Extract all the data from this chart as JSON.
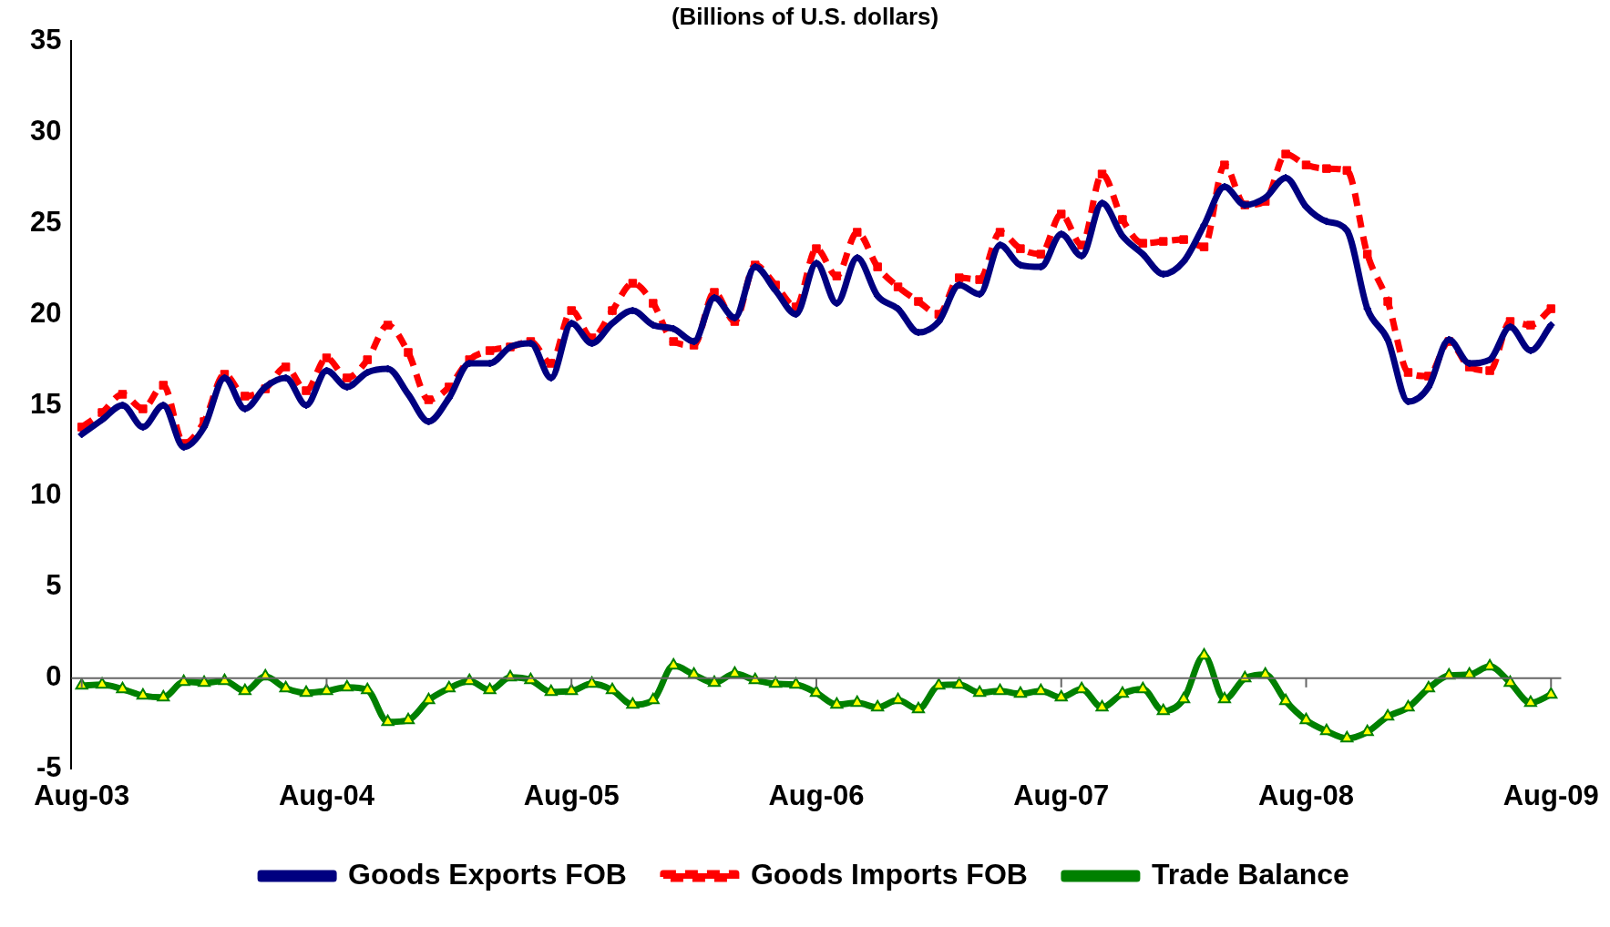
{
  "chart_data": {
    "type": "line",
    "title": "(Billions of U.S. dollars)",
    "categories": [
      "Aug-03",
      null,
      null,
      null,
      null,
      null,
      null,
      null,
      null,
      null,
      null,
      null,
      "Aug-04",
      null,
      null,
      null,
      null,
      null,
      null,
      null,
      null,
      null,
      null,
      null,
      "Aug-05",
      null,
      null,
      null,
      null,
      null,
      null,
      null,
      null,
      null,
      null,
      null,
      "Aug-06",
      null,
      null,
      null,
      null,
      null,
      null,
      null,
      null,
      null,
      null,
      null,
      "Aug-07",
      null,
      null,
      null,
      null,
      null,
      null,
      null,
      null,
      null,
      null,
      null,
      "Aug-08",
      null,
      null,
      null,
      null,
      null,
      null,
      null,
      null,
      null,
      null,
      null,
      "Aug-09"
    ],
    "series": [
      {
        "name": "Goods Exports FOB",
        "color": "#000080",
        "marker": "diamond",
        "line_style": "solid",
        "values": [
          13.4,
          14.2,
          15.0,
          13.8,
          15.0,
          12.7,
          13.8,
          16.5,
          14.8,
          16.0,
          16.5,
          15.0,
          16.9,
          16.0,
          16.8,
          17.0,
          15.6,
          14.1,
          15.4,
          17.3,
          17.3,
          18.2,
          18.4,
          16.5,
          19.5,
          18.4,
          19.5,
          20.2,
          19.4,
          19.2,
          18.5,
          20.9,
          19.8,
          22.6,
          21.3,
          20.0,
          22.8,
          20.6,
          23.1,
          21.0,
          20.3,
          19.0,
          19.6,
          21.6,
          21.1,
          23.8,
          22.7,
          22.6,
          24.4,
          23.2,
          26.1,
          24.3,
          23.3,
          22.2,
          22.9,
          24.9,
          27.0,
          26.0,
          26.4,
          27.5,
          25.9,
          25.1,
          24.6,
          20.3,
          18.6,
          15.2,
          16.0,
          18.6,
          17.3,
          17.5,
          19.3,
          18.0,
          19.4
        ]
      },
      {
        "name": "Goods Imports FOB",
        "color": "#ff0000",
        "marker": "square",
        "line_style": "dashed",
        "values": [
          13.8,
          14.6,
          15.6,
          14.8,
          16.1,
          12.9,
          14.1,
          16.7,
          15.5,
          15.9,
          17.1,
          15.8,
          17.6,
          16.5,
          17.5,
          19.4,
          17.9,
          15.3,
          16.0,
          17.5,
          18.0,
          18.2,
          18.5,
          17.3,
          20.2,
          18.7,
          20.2,
          21.7,
          20.6,
          18.5,
          18.3,
          21.2,
          19.6,
          22.7,
          21.6,
          20.4,
          23.6,
          22.1,
          24.5,
          22.6,
          21.5,
          20.7,
          20.0,
          22.0,
          21.9,
          24.5,
          23.6,
          23.3,
          25.5,
          23.8,
          27.7,
          25.2,
          23.9,
          24.0,
          24.1,
          23.7,
          28.2,
          26.0,
          26.2,
          28.8,
          28.2,
          28.0,
          27.9,
          23.3,
          20.7,
          16.8,
          16.6,
          18.5,
          17.1,
          16.9,
          19.6,
          19.4,
          20.3
        ]
      },
      {
        "name": "Trade Balance",
        "color": "#008000",
        "marker": "triangle",
        "line_style": "solid",
        "values": [
          -0.4,
          -0.35,
          -0.6,
          -0.95,
          -1.05,
          -0.2,
          -0.25,
          -0.15,
          -0.7,
          0.1,
          -0.55,
          -0.8,
          -0.7,
          -0.5,
          -0.65,
          -2.4,
          -2.3,
          -1.2,
          -0.55,
          -0.15,
          -0.65,
          0.05,
          -0.1,
          -0.75,
          -0.7,
          -0.3,
          -0.65,
          -1.45,
          -1.2,
          0.7,
          0.2,
          -0.25,
          0.25,
          -0.1,
          -0.3,
          -0.35,
          -0.8,
          -1.45,
          -1.35,
          -1.6,
          -1.2,
          -1.7,
          -0.4,
          -0.35,
          -0.8,
          -0.7,
          -0.85,
          -0.7,
          -1.05,
          -0.6,
          -1.6,
          -0.85,
          -0.6,
          -1.8,
          -1.15,
          1.25,
          -1.15,
          0.0,
          0.2,
          -1.25,
          -2.3,
          -2.9,
          -3.3,
          -2.95,
          -2.1,
          -1.6,
          -0.55,
          0.15,
          0.2,
          0.65,
          -0.25,
          -1.35,
          -0.9
        ]
      }
    ],
    "ylim": [
      -5,
      35
    ],
    "yticks": [
      -5,
      0,
      5,
      10,
      15,
      20,
      25,
      30,
      35
    ],
    "ref_lines": [
      {
        "axis": "y",
        "value": 0,
        "color": "#666666",
        "line_style": "solid"
      }
    ],
    "grid": false,
    "legend": "bottom"
  }
}
